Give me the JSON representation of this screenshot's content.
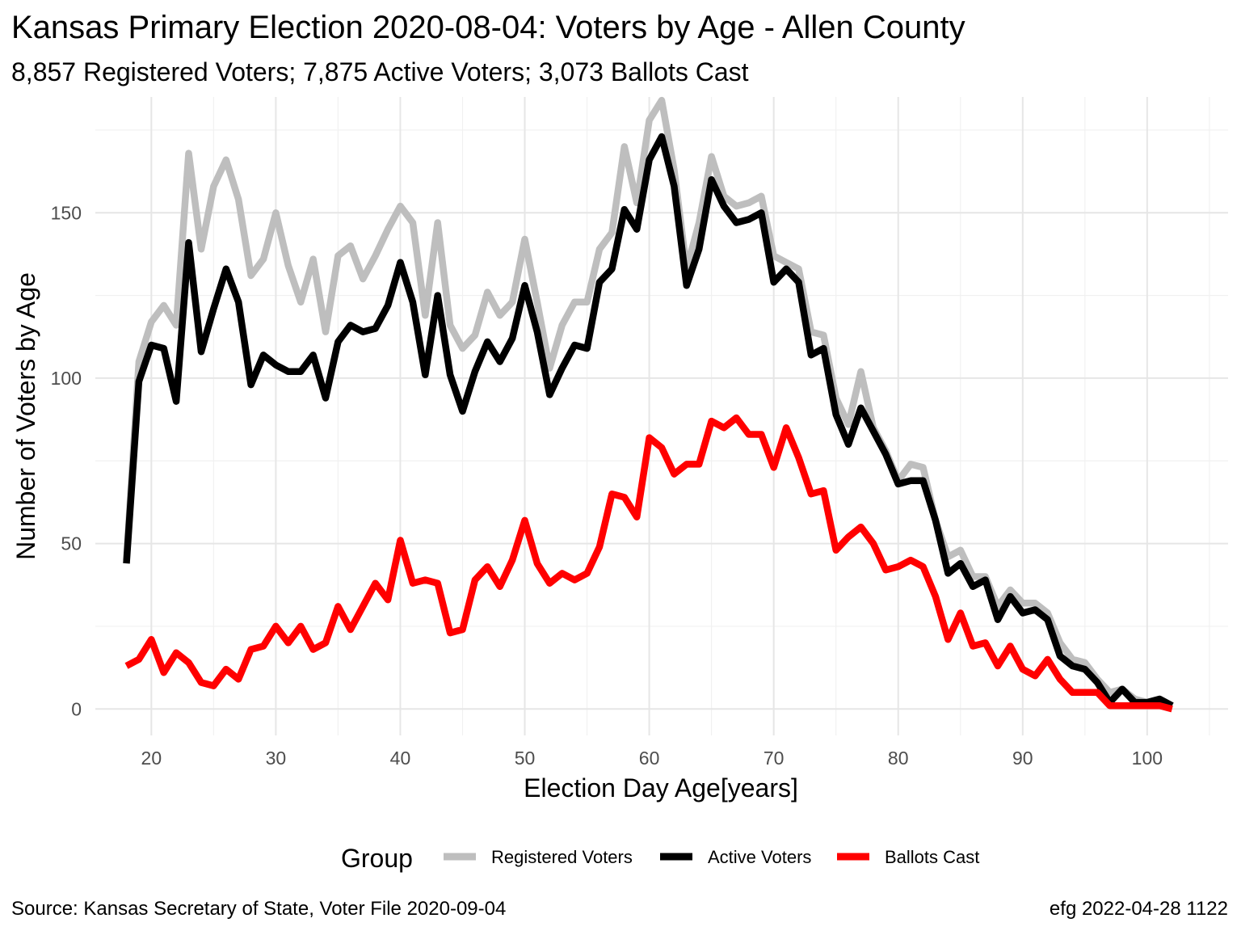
{
  "chart_data": {
    "type": "line",
    "title": "Kansas Primary Election 2020-08-04:  Voters by Age - Allen County",
    "subtitle": "8,857 Registered Voters; 7,875 Active Voters; 3,073 Ballots Cast",
    "xlabel": "Election Day Age[years]",
    "ylabel": "Number of Voters by Age",
    "xlim": [
      15.5,
      106.5
    ],
    "ylim": [
      -8,
      185
    ],
    "x_ticks": [
      20,
      30,
      40,
      50,
      60,
      70,
      80,
      90,
      100
    ],
    "y_ticks": [
      0,
      50,
      100,
      150
    ],
    "grid": true,
    "legend_title": "Group",
    "legend_position": "bottom",
    "x": [
      18,
      19,
      20,
      21,
      22,
      23,
      24,
      25,
      26,
      27,
      28,
      29,
      30,
      31,
      32,
      33,
      34,
      35,
      36,
      37,
      38,
      39,
      40,
      41,
      42,
      43,
      44,
      45,
      46,
      47,
      48,
      49,
      50,
      51,
      52,
      53,
      54,
      55,
      56,
      57,
      58,
      59,
      60,
      61,
      62,
      63,
      64,
      65,
      66,
      67,
      68,
      69,
      70,
      71,
      72,
      73,
      74,
      75,
      76,
      77,
      78,
      79,
      80,
      81,
      82,
      83,
      84,
      85,
      86,
      87,
      88,
      89,
      90,
      91,
      92,
      93,
      94,
      95,
      96,
      97,
      98,
      99,
      100,
      101,
      102
    ],
    "series": [
      {
        "name": "Registered Voters",
        "color": "#bebebe",
        "values": [
          45,
          105,
          117,
          122,
          116,
          168,
          139,
          158,
          166,
          154,
          131,
          136,
          150,
          134,
          123,
          136,
          114,
          137,
          140,
          130,
          137,
          145,
          152,
          147,
          119,
          147,
          116,
          109,
          113,
          126,
          119,
          123,
          142,
          123,
          103,
          116,
          123,
          123,
          139,
          144,
          170,
          153,
          178,
          184,
          163,
          133,
          147,
          167,
          155,
          152,
          153,
          155,
          137,
          135,
          133,
          114,
          113,
          94,
          86,
          102,
          85,
          78,
          69,
          74,
          73,
          57,
          46,
          48,
          40,
          40,
          31,
          36,
          32,
          32,
          29,
          20,
          15,
          14,
          9,
          5,
          6,
          3,
          2,
          3,
          1
        ]
      },
      {
        "name": "Active Voters",
        "color": "#000000",
        "values": [
          44,
          99,
          110,
          109,
          93,
          141,
          108,
          121,
          133,
          123,
          98,
          107,
          104,
          102,
          102,
          107,
          94,
          111,
          116,
          114,
          115,
          122,
          135,
          123,
          101,
          125,
          101,
          90,
          102,
          111,
          105,
          112,
          128,
          114,
          95,
          103,
          110,
          109,
          129,
          133,
          151,
          145,
          166,
          173,
          158,
          128,
          139,
          160,
          152,
          147,
          148,
          150,
          129,
          133,
          129,
          107,
          109,
          89,
          80,
          91,
          84,
          77,
          68,
          69,
          69,
          57,
          41,
          44,
          37,
          39,
          27,
          34,
          29,
          30,
          27,
          16,
          13,
          12,
          8,
          2,
          6,
          2,
          2,
          3,
          1
        ]
      },
      {
        "name": "Ballots Cast",
        "color": "#ff0000",
        "values": [
          13,
          15,
          21,
          11,
          17,
          14,
          8,
          7,
          12,
          9,
          18,
          19,
          25,
          20,
          25,
          18,
          20,
          31,
          24,
          31,
          38,
          33,
          51,
          38,
          39,
          38,
          23,
          24,
          39,
          43,
          37,
          45,
          57,
          44,
          38,
          41,
          39,
          41,
          49,
          65,
          64,
          58,
          82,
          79,
          71,
          74,
          74,
          87,
          85,
          88,
          83,
          83,
          73,
          85,
          76,
          65,
          66,
          48,
          52,
          55,
          50,
          42,
          43,
          45,
          43,
          34,
          21,
          29,
          19,
          20,
          13,
          19,
          12,
          10,
          15,
          9,
          5,
          5,
          5,
          1,
          1,
          1,
          1,
          1,
          0
        ]
      }
    ]
  },
  "footer": {
    "source": "Source:  Kansas Secretary of State, Voter File  2020-09-04",
    "credit": "efg 2022-04-28 1122"
  }
}
